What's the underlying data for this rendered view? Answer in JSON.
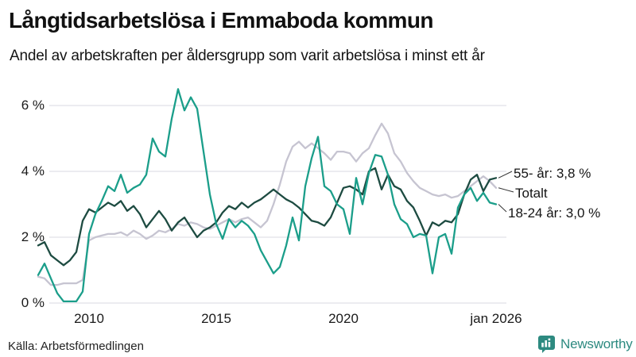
{
  "header": {
    "title": "Långtidsarbetslösa i Emmaboda kommun",
    "subtitle": "Andel av arbetskraften per åldersgrupp som varit arbetslösa i minst ett år"
  },
  "footer": {
    "source": "Källa: Arbetsförmedlingen",
    "brand": "Newsworthy"
  },
  "colors": {
    "series_55": "#1d4b41",
    "series_total": "#c6c4d1",
    "series_1824": "#1b9e8a",
    "grid": "#e1e1e6",
    "text": "#111111",
    "brand_teal": "#2d8a80"
  },
  "chart_data": {
    "type": "line",
    "title": "Långtidsarbetslösa i Emmaboda kommun",
    "subtitle": "Andel av arbetskraften per åldersgrupp som varit arbetslösa i minst ett år",
    "xlabel": "",
    "ylabel": "",
    "xlim": [
      2008,
      2026
    ],
    "ylim": [
      0,
      6.6
    ],
    "grid": "horizontal",
    "legend_position": "inline-right-annotations",
    "y_ticks": [
      {
        "label": "6 %",
        "value": 6
      },
      {
        "label": "4 %",
        "value": 4
      },
      {
        "label": "2 %",
        "value": 2
      },
      {
        "label": "0 %",
        "value": 0
      }
    ],
    "x_ticks": [
      {
        "label": "2010",
        "year": 2010
      },
      {
        "label": "2015",
        "year": 2015
      },
      {
        "label": "2020",
        "year": 2020
      },
      {
        "label": "jan 2026",
        "year": 2026
      }
    ],
    "x": [
      2008,
      2008.25,
      2008.5,
      2008.75,
      2009,
      2009.25,
      2009.5,
      2009.75,
      2010,
      2010.25,
      2010.5,
      2010.75,
      2011,
      2011.25,
      2011.5,
      2011.75,
      2012,
      2012.25,
      2012.5,
      2012.75,
      2013,
      2013.25,
      2013.5,
      2013.75,
      2014,
      2014.25,
      2014.5,
      2014.75,
      2015,
      2015.25,
      2015.5,
      2015.75,
      2016,
      2016.25,
      2016.5,
      2016.75,
      2017,
      2017.25,
      2017.5,
      2017.75,
      2018,
      2018.25,
      2018.5,
      2018.75,
      2019,
      2019.25,
      2019.5,
      2019.75,
      2020,
      2020.25,
      2020.5,
      2020.75,
      2021,
      2021.25,
      2021.5,
      2021.75,
      2022,
      2022.25,
      2022.5,
      2022.75,
      2023,
      2023.25,
      2023.5,
      2023.75,
      2024,
      2024.25,
      2024.5,
      2024.75,
      2025,
      2025.25,
      2025.5,
      2025.75,
      2026
    ],
    "series": [
      {
        "name": "55- år",
        "label": "55- år: 3,8 %",
        "last_value": "3,8 %",
        "color_key": "series_55",
        "values": [
          1.75,
          1.85,
          1.45,
          1.3,
          1.15,
          1.3,
          1.55,
          2.5,
          2.85,
          2.75,
          2.9,
          3.05,
          2.95,
          3.1,
          2.8,
          2.95,
          2.7,
          2.3,
          2.55,
          2.8,
          2.55,
          2.2,
          2.45,
          2.6,
          2.3,
          2.0,
          2.2,
          2.3,
          2.45,
          2.75,
          2.95,
          2.85,
          3.05,
          2.9,
          3.05,
          3.15,
          3.3,
          3.45,
          3.3,
          3.15,
          3.05,
          2.9,
          2.7,
          2.5,
          2.45,
          2.35,
          2.6,
          3.05,
          3.5,
          3.55,
          3.45,
          3.3,
          4.0,
          4.1,
          3.45,
          3.9,
          3.55,
          3.45,
          3.1,
          2.9,
          2.5,
          2.05,
          2.45,
          2.35,
          2.5,
          2.45,
          2.7,
          3.3,
          3.75,
          3.9,
          3.4,
          3.75,
          3.8
        ]
      },
      {
        "name": "Totalt",
        "label": "Totalt",
        "last_value": "3,5 %",
        "color_key": "series_total",
        "values": [
          0.8,
          0.75,
          0.55,
          0.55,
          0.6,
          0.6,
          0.6,
          0.7,
          1.9,
          2.0,
          2.05,
          2.1,
          2.1,
          2.15,
          2.05,
          2.2,
          2.1,
          1.95,
          2.05,
          2.2,
          2.15,
          2.25,
          2.4,
          2.35,
          2.45,
          2.4,
          2.3,
          2.25,
          2.35,
          2.45,
          2.55,
          2.45,
          2.55,
          2.6,
          2.45,
          2.3,
          2.5,
          3.0,
          3.6,
          4.3,
          4.75,
          4.9,
          4.7,
          4.85,
          4.7,
          4.55,
          4.35,
          4.6,
          4.6,
          4.55,
          4.3,
          4.55,
          4.7,
          5.1,
          5.45,
          5.15,
          4.55,
          4.3,
          3.95,
          3.7,
          3.5,
          3.4,
          3.3,
          3.25,
          3.3,
          3.2,
          3.25,
          3.4,
          3.55,
          3.7,
          3.85,
          3.7,
          3.5
        ]
      },
      {
        "name": "18-24 år",
        "label": "18-24 år: 3,0 %",
        "last_value": "3,0 %",
        "color_key": "series_1824",
        "values": [
          0.85,
          1.2,
          0.75,
          0.3,
          0.05,
          0.05,
          0.05,
          0.35,
          2.1,
          2.7,
          3.1,
          3.55,
          3.4,
          3.9,
          3.35,
          3.5,
          3.6,
          3.9,
          5.0,
          4.6,
          4.45,
          5.6,
          6.5,
          5.85,
          6.25,
          5.9,
          4.6,
          3.3,
          2.4,
          1.95,
          2.55,
          2.3,
          2.5,
          2.35,
          2.1,
          1.6,
          1.25,
          0.9,
          1.1,
          1.75,
          2.6,
          1.9,
          3.55,
          4.4,
          5.05,
          3.55,
          3.4,
          3.0,
          2.85,
          2.1,
          3.8,
          3.0,
          3.95,
          4.5,
          4.45,
          3.9,
          3.0,
          2.55,
          2.4,
          2.0,
          2.1,
          2.05,
          0.9,
          2.0,
          2.1,
          1.5,
          2.9,
          3.3,
          3.5,
          3.1,
          3.35,
          3.05,
          3.0
        ]
      }
    ]
  }
}
